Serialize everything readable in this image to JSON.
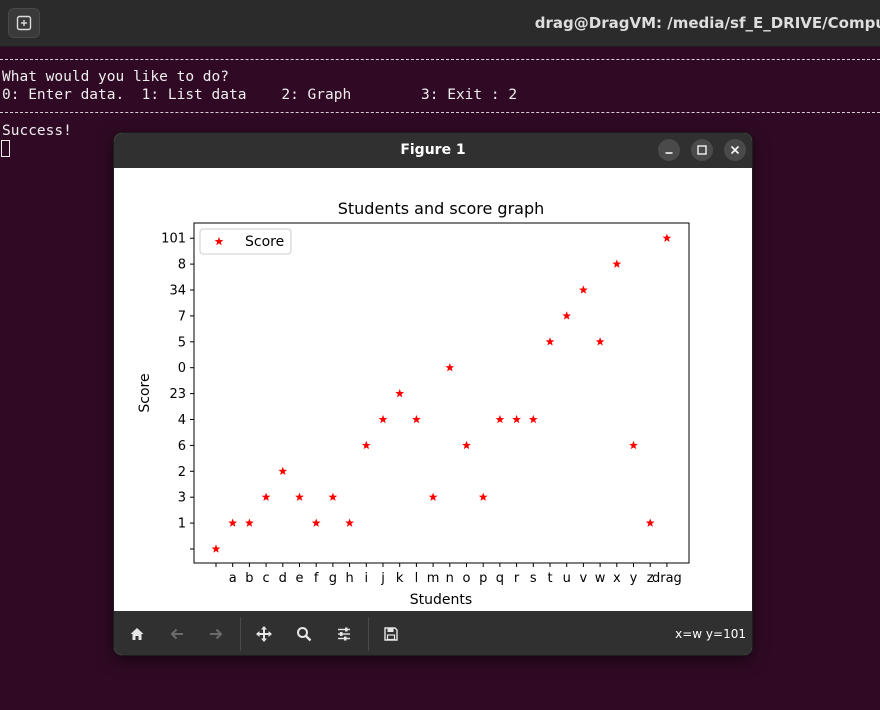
{
  "terminal": {
    "title": "drag@DragVM: /media/sf_E_DRIVE/Compu",
    "lines": {
      "prompt": "What would you like to do?",
      "menu": "0: Enter data.  1: List data    2: Graph        3: Exit : 2",
      "result": "Success!"
    }
  },
  "figure_window": {
    "title": "Figure 1",
    "coord_readout": "x=w y=101",
    "icons": {
      "new_tab": "new-tab-icon",
      "minimize": "minimize-icon",
      "maximize": "maximize-icon",
      "close": "close-icon",
      "home": "home-icon",
      "back": "back-arrow-icon",
      "forward": "forward-arrow-icon",
      "pan": "pan-icon",
      "zoom": "zoom-icon",
      "configure": "sliders-icon",
      "save": "save-icon"
    }
  },
  "chart_data": {
    "type": "scatter",
    "title": "Students and score graph",
    "xlabel": "Students",
    "ylabel": "Score",
    "x_categories": [
      "",
      "a",
      "b",
      "c",
      "d",
      "e",
      "f",
      "g",
      "h",
      "i",
      "j",
      "k",
      "l",
      "m",
      "n",
      "o",
      "p",
      "q",
      "r",
      "s",
      "t",
      "u",
      "v",
      "w",
      "x",
      "y",
      "z",
      "drag"
    ],
    "y_categories": [
      "",
      "1",
      "3",
      "2",
      "6",
      "4",
      "23",
      "0",
      "5",
      "7",
      "34",
      "8",
      "101"
    ],
    "series": [
      {
        "name": "Score",
        "marker": "star",
        "color": "#ff0000",
        "x": [
          "",
          "a",
          "b",
          "c",
          "d",
          "e",
          "f",
          "g",
          "h",
          "i",
          "j",
          "k",
          "l",
          "m",
          "n",
          "o",
          "p",
          "q",
          "r",
          "s",
          "t",
          "u",
          "v",
          "w",
          "x",
          "y",
          "z",
          "drag"
        ],
        "y": [
          "",
          "1",
          "1",
          "3",
          "2",
          "3",
          "1",
          "3",
          "1",
          "6",
          "4",
          "23",
          "4",
          "3",
          "0",
          "6",
          "3",
          "4",
          "4",
          "4",
          "5",
          "7",
          "34",
          "5",
          "8",
          "6",
          "1",
          "101"
        ]
      }
    ],
    "legend": {
      "placement": "top-left",
      "entries": [
        "Score"
      ]
    },
    "grid": false
  }
}
